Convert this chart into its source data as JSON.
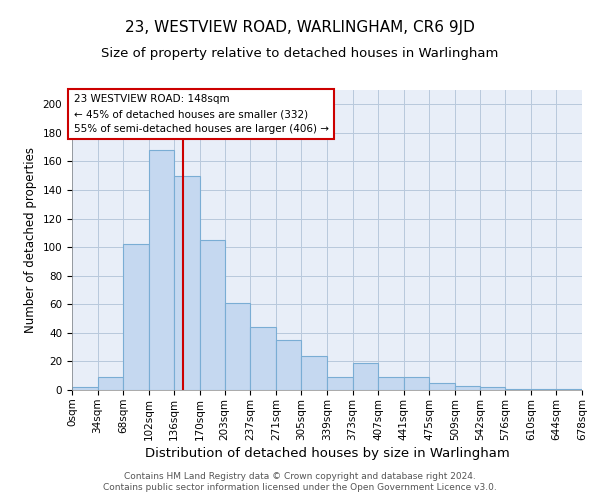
{
  "title": "23, WESTVIEW ROAD, WARLINGHAM, CR6 9JD",
  "subtitle": "Size of property relative to detached houses in Warlingham",
  "xlabel": "Distribution of detached houses by size in Warlingham",
  "ylabel": "Number of detached properties",
  "bar_heights": [
    2,
    9,
    102,
    168,
    150,
    105,
    61,
    44,
    35,
    24,
    9,
    19,
    9,
    9,
    5,
    3,
    2,
    1,
    1,
    1
  ],
  "bin_labels": [
    "0sqm",
    "34sqm",
    "68sqm",
    "102sqm",
    "136sqm",
    "170sqm",
    "203sqm",
    "237sqm",
    "271sqm",
    "305sqm",
    "339sqm",
    "373sqm",
    "407sqm",
    "441sqm",
    "475sqm",
    "509sqm",
    "542sqm",
    "576sqm",
    "610sqm",
    "644sqm",
    "678sqm"
  ],
  "bin_edges": [
    0,
    34,
    68,
    102,
    136,
    170,
    203,
    237,
    271,
    305,
    339,
    373,
    407,
    441,
    475,
    509,
    542,
    576,
    610,
    644,
    678
  ],
  "bar_color": "#c5d8f0",
  "bar_edge_color": "#7aadd4",
  "property_size": 148,
  "vline_color": "#cc0000",
  "annotation_text": "23 WESTVIEW ROAD: 148sqm\n← 45% of detached houses are smaller (332)\n55% of semi-detached houses are larger (406) →",
  "annotation_box_edge_color": "#cc0000",
  "ylim": [
    0,
    210
  ],
  "yticks": [
    0,
    20,
    40,
    60,
    80,
    100,
    120,
    140,
    160,
    180,
    200
  ],
  "footer_line1": "Contains HM Land Registry data © Crown copyright and database right 2024.",
  "footer_line2": "Contains public sector information licensed under the Open Government Licence v3.0.",
  "background_color": "#e8eef8",
  "grid_color": "#b8c8dc",
  "title_fontsize": 11,
  "subtitle_fontsize": 9.5,
  "xlabel_fontsize": 9.5,
  "ylabel_fontsize": 8.5,
  "tick_fontsize": 7.5,
  "footer_fontsize": 6.5
}
